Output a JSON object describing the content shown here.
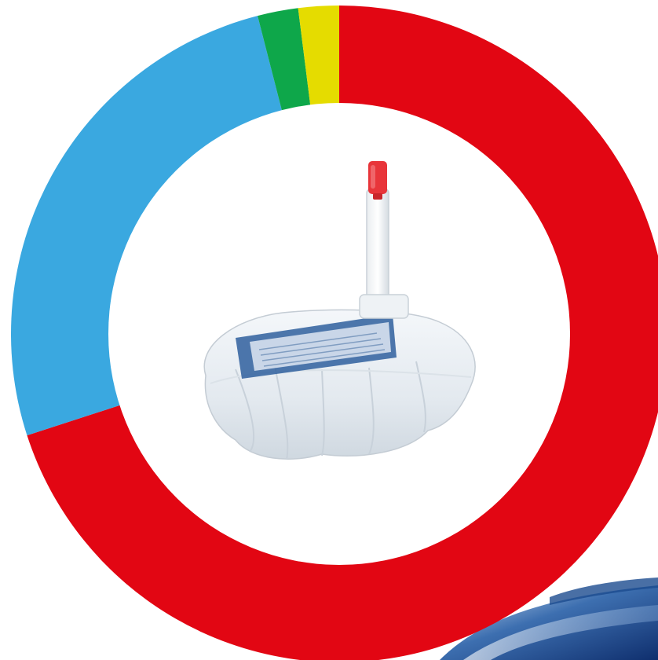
{
  "chart_data": {
    "type": "pie",
    "style": "donut",
    "slices": [
      {
        "color": "#e20613",
        "value": 0.7
      },
      {
        "color": "#3aa8e0",
        "value": 0.26
      },
      {
        "color": "#0ea74a",
        "value": 0.02
      },
      {
        "color": "#e5dc00",
        "value": 0.02
      }
    ],
    "start_angle": "top",
    "direction": "clockwise",
    "legend": "none",
    "center_image": "refill-bag-product-photo",
    "decoration": "water-wave-bottom-right"
  }
}
